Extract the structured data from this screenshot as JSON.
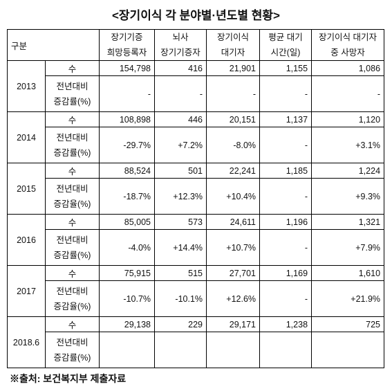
{
  "title": "<장기이식 각 분야별·년도별 현황>",
  "table": {
    "corner": "구분",
    "columns": [
      [
        "장기기증",
        "희망등록자"
      ],
      [
        "뇌사",
        "장기기증자"
      ],
      [
        "장기이식",
        "대기자"
      ],
      [
        "평균 대기",
        "시간(일)"
      ],
      [
        "장기이식 대기자",
        "중 사망자"
      ]
    ],
    "groups": [
      {
        "year": "2013",
        "count_label": "수",
        "count": [
          "154,798",
          "416",
          "21,901",
          "1,155",
          "1,086"
        ],
        "change_label": [
          "전년대비",
          "증감률(%)"
        ],
        "change": [
          "-",
          "-",
          "-",
          "-",
          "-"
        ]
      },
      {
        "year": "2014",
        "count_label": "수",
        "count": [
          "108,898",
          "446",
          "20,151",
          "1,137",
          "1,120"
        ],
        "change_label": [
          "전년대비",
          "증감률(%)"
        ],
        "change": [
          "-29.7%",
          "+7.2%",
          "-8.0%",
          "-",
          "+3.1%"
        ]
      },
      {
        "year": "2015",
        "count_label": "수",
        "count": [
          "88,524",
          "501",
          "22,241",
          "1,185",
          "1,224"
        ],
        "change_label": [
          "전년대비",
          "증감율(%)"
        ],
        "change": [
          "-18.7%",
          "+12.3%",
          "+10.4%",
          "-",
          "+9.3%"
        ]
      },
      {
        "year": "2016",
        "count_label": "수",
        "count": [
          "85,005",
          "573",
          "24,611",
          "1,196",
          "1,321"
        ],
        "change_label": [
          "전년대비",
          "증감률(%)"
        ],
        "change": [
          "-4.0%",
          "+14.4%",
          "+10.7%",
          "-",
          "+7.9%"
        ]
      },
      {
        "year": "2017",
        "count_label": "수",
        "count": [
          "75,915",
          "515",
          "27,701",
          "1,169",
          "1,610"
        ],
        "change_label": [
          "전년대비",
          "증감율(%)"
        ],
        "change": [
          "-10.7%",
          "-10.1%",
          "+12.6%",
          "-",
          "+21.9%"
        ]
      },
      {
        "year": "2018.6",
        "count_label": "수",
        "count": [
          "29,138",
          "229",
          "29,171",
          "1,238",
          "725"
        ],
        "change_label": [
          "전년대비",
          "증감률(%)"
        ]
      }
    ]
  },
  "source": "※출처: 보건복지부 제출자료"
}
